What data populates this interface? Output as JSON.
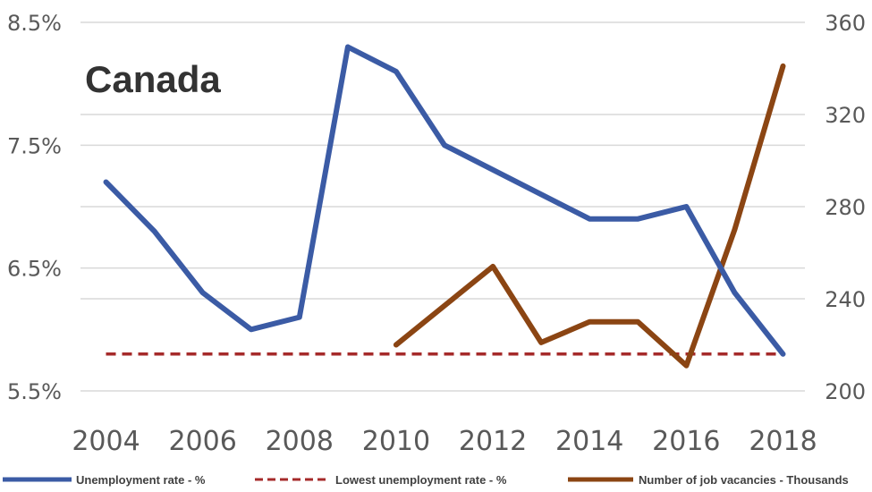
{
  "chart_data": {
    "type": "line",
    "title": "Canada",
    "x": [
      2004,
      2005,
      2006,
      2007,
      2008,
      2009,
      2010,
      2011,
      2012,
      2013,
      2014,
      2015,
      2016,
      2017,
      2018
    ],
    "x_tick_labels": [
      "2004",
      "2006",
      "2008",
      "2010",
      "2012",
      "2014",
      "2016",
      "2018"
    ],
    "y_left": {
      "ylim": [
        5.5,
        8.5
      ],
      "ticks": [
        5.5,
        6.5,
        7.5,
        8.5
      ],
      "tick_labels": [
        "5.5%",
        "6.5%",
        "7.5%",
        "8.5%"
      ]
    },
    "y_right": {
      "ylim": [
        200,
        360
      ],
      "ticks": [
        200,
        240,
        280,
        320,
        360
      ],
      "tick_labels": [
        "200",
        "240",
        "280",
        "320",
        "360"
      ]
    },
    "grid": true,
    "legend_position": "bottom",
    "series": [
      {
        "name": "Unemployment rate - %",
        "axis": "left",
        "style": "solid",
        "color": "#3B5BA5",
        "x": [
          2004,
          2005,
          2006,
          2007,
          2008,
          2009,
          2010,
          2011,
          2012,
          2013,
          2014,
          2015,
          2016,
          2017,
          2018
        ],
        "values": [
          7.2,
          6.8,
          6.3,
          6.0,
          6.1,
          8.3,
          8.1,
          7.5,
          7.3,
          7.1,
          6.9,
          6.9,
          7.0,
          6.3,
          5.8
        ]
      },
      {
        "name": "Lowest unemployment rate - %",
        "axis": "left",
        "style": "dashed",
        "color": "#A52A2A",
        "x": [
          2004,
          2018
        ],
        "values": [
          5.8,
          5.8
        ]
      },
      {
        "name": "Number of job vacancies - Thousands",
        "axis": "right",
        "style": "solid",
        "color": "#8B4513",
        "x": [
          2010,
          2011,
          2012,
          2013,
          2014,
          2015,
          2016,
          2017,
          2018
        ],
        "values": [
          220,
          237,
          254,
          221,
          230,
          230,
          211,
          270,
          341
        ]
      }
    ]
  }
}
